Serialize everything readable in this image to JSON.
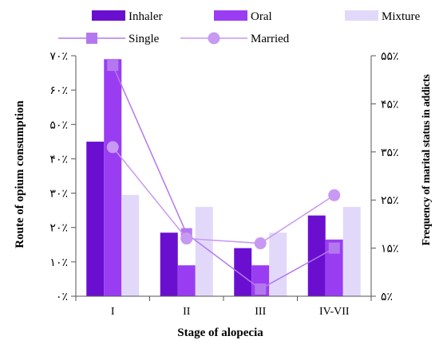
{
  "chart_data": {
    "type": "bar",
    "xlabel": "Stage of alopecia",
    "ylabel": "Route of opium consumption",
    "y2label": "Frequency of marital status in addicts",
    "categories": [
      "I",
      "II",
      "III",
      "IV-VII"
    ],
    "ylim": [
      0,
      70
    ],
    "y_ticks": [
      0,
      10,
      20,
      30,
      40,
      50,
      60,
      70
    ],
    "y_tick_labels": [
      "٠٪",
      "١٠٪",
      "٢٠٪",
      "٣٠٪",
      "۴٠٪",
      "۵٠٪",
      "۶٠٪",
      "٧٠٪"
    ],
    "y2lim": [
      5,
      55
    ],
    "y2_ticks": [
      5,
      15,
      25,
      35,
      45,
      55
    ],
    "y2_tick_labels": [
      "۵٪",
      "۱۵٪",
      "۲۵٪",
      "۳۵٪",
      "۴۵٪",
      "۵۵٪"
    ],
    "series": [
      {
        "name": "Inhaler",
        "kind": "bar",
        "axis": "left",
        "color": "#6a0fcf",
        "values": [
          45,
          18.5,
          14,
          23.5
        ]
      },
      {
        "name": "Oral",
        "kind": "bar",
        "axis": "left",
        "color": "#9a3df2",
        "values": [
          69,
          9,
          9,
          16.5
        ]
      },
      {
        "name": "Mixture",
        "kind": "bar",
        "axis": "left",
        "color": "#e2d9fa",
        "values": [
          29.5,
          26,
          18.5,
          26
        ]
      },
      {
        "name": "Single",
        "kind": "line",
        "marker": "square",
        "axis": "right",
        "color": "#b478ee",
        "values": [
          53,
          18,
          6.5,
          15
        ]
      },
      {
        "name": "Married",
        "kind": "line",
        "marker": "circle",
        "axis": "right",
        "color": "#c799f2",
        "values": [
          36,
          17,
          16,
          26
        ]
      }
    ],
    "legend_position": "top",
    "grid": false
  }
}
